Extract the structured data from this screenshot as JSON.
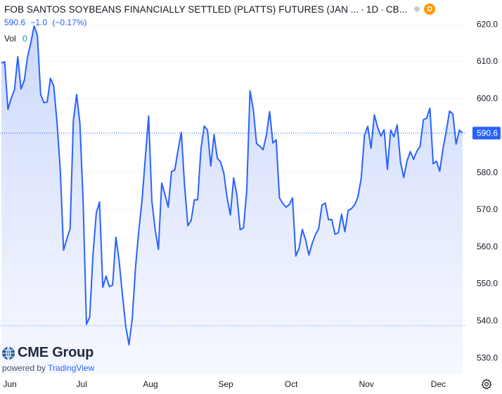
{
  "header": {
    "title": "FOB SANTOS SOYBEANS FINANCIALLY SETTLED (PLATTS) FUTURES (JAN ...",
    "sep1": "·",
    "interval": "1D",
    "sep2": "·",
    "exchange": "CB...",
    "delay_badge": "D"
  },
  "quote": {
    "price": "590.6",
    "change": "−1.0",
    "change_pct": "(−0.17%)"
  },
  "volume": {
    "label": "Vol",
    "value": "0"
  },
  "branding": {
    "logo_text": "CME Group",
    "powered_prefix": "powered by",
    "powered_brand": "TradingView"
  },
  "colors": {
    "line": "#2962ff",
    "area_top": "#c8d5fb",
    "area_bottom": "#f2f5ff",
    "last_price_badge": "#2962ff",
    "volume_value": "#089981",
    "delay_badge": "#ff9800",
    "gridline": "#f0f3fa"
  },
  "icons": {
    "status": "status-dot-icon",
    "delay": "delayed-data-badge",
    "logo": "cme-globe-icon",
    "settings": "gear-icon"
  },
  "chart_data": {
    "type": "area",
    "title": "FOB SANTOS SOYBEANS FINANCIALLY SETTLED (PLATTS) FUTURES (JAN ...",
    "y_ticks": [
      530,
      540,
      550,
      560,
      570,
      580,
      590,
      600,
      610,
      620
    ],
    "ylim": [
      525.5,
      626.5
    ],
    "x_labels": [
      "Jun",
      "Jul",
      "Aug",
      "Sep",
      "Oct",
      "Nov",
      "Dec"
    ],
    "last_price": 590.6,
    "last_price_label": "590.6",
    "dotted_reference": 538.6,
    "series": [
      {
        "values": [
          609.5,
          609.8,
          597,
          600,
          602.3,
          611.2,
          602.5,
          604.8,
          611.2,
          615,
          619.5,
          617,
          601,
          598.8,
          599,
          605.4,
          603.3,
          593.5,
          580.5,
          559,
          562,
          564.8,
          594,
          601,
          593.2,
          571.7,
          539,
          541,
          557.8,
          569,
          572,
          549,
          552,
          549.2,
          549.6,
          562.5,
          556,
          547,
          538.5,
          533.5,
          540.5,
          554.3,
          564.3,
          572.5,
          584,
          595.2,
          572.2,
          564.6,
          559.2,
          577.1,
          574,
          570.6,
          580.2,
          580.6,
          586,
          590.8,
          576.4,
          565.6,
          567,
          572.6,
          572.6,
          586.3,
          592.5,
          591.4,
          581.7,
          590.2,
          583.8,
          582.8,
          579.8,
          573.1,
          568.5,
          578.5,
          573.8,
          564.5,
          565,
          575,
          602,
          597,
          587.8,
          587,
          586.1,
          590,
          596.4,
          587.9,
          588.8,
          573.1,
          571.6,
          570.6,
          571.3,
          573.1,
          557.4,
          559.5,
          564.6,
          561.8,
          557.7,
          560.8,
          563.2,
          564.8,
          571.2,
          571.7,
          567.2,
          567.3,
          563.3,
          563.7,
          568.7,
          564,
          569.7,
          570.2,
          571.2,
          573.4,
          578.4,
          590,
          592.4,
          586.5,
          595.5,
          592.2,
          589.8,
          591.5,
          580.8,
          591.4,
          589.6,
          592.8,
          582.8,
          578.6,
          583.1,
          585.6,
          583.5,
          585.7,
          587,
          594.2,
          594.6,
          597.3,
          582.3,
          583,
          580.3,
          586.4,
          591.1,
          596.5,
          595.8,
          587.6,
          591.4,
          590.6
        ]
      }
    ]
  }
}
